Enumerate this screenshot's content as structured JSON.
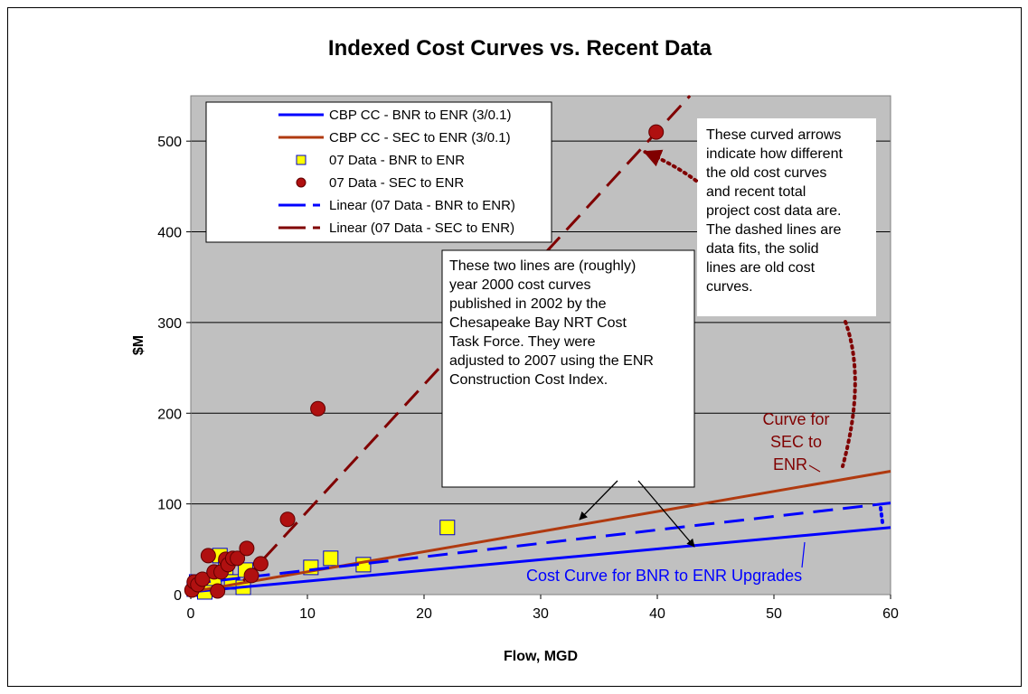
{
  "chart_data": {
    "type": "scatter",
    "title": "Indexed Cost Curves vs. Recent Data",
    "xlabel": "Flow, MGD",
    "ylabel": "$M",
    "xlim": [
      0,
      60
    ],
    "ylim": [
      0,
      550
    ],
    "x_ticks": [
      "0",
      "10",
      "20",
      "30",
      "40",
      "50",
      "60"
    ],
    "y_ticks": [
      "0",
      "100",
      "200",
      "300",
      "400",
      "500"
    ],
    "grid": "horizontal",
    "plot_background": "#c0c0c0",
    "legend_position": "top-left",
    "series": [
      {
        "name": "CBP CC - BNR to ENR (3/0.1)",
        "kind": "solid-line",
        "color": "#0000ff",
        "x": [
          0,
          60
        ],
        "y": [
          3,
          74
        ]
      },
      {
        "name": "CBP CC - SEC to ENR (3/0.1)",
        "kind": "solid-line",
        "color": "#b03a10",
        "x": [
          0,
          60
        ],
        "y": [
          3,
          136
        ]
      },
      {
        "name": "07 Data - BNR to ENR",
        "kind": "square-marker",
        "color": "#ffff00",
        "x": [
          0.3,
          0.5,
          1.0,
          1.2,
          2.0,
          2.5,
          3.0,
          3.5,
          4.5,
          4.7,
          10.3,
          12.0,
          14.8,
          22.0
        ],
        "y": [
          6,
          14,
          10,
          3,
          18,
          43,
          30,
          14,
          8,
          27,
          30,
          40,
          33,
          74
        ]
      },
      {
        "name": "07 Data - SEC to ENR",
        "kind": "circle-marker",
        "color": "#b01010",
        "x": [
          0.1,
          0.3,
          0.6,
          1.0,
          1.5,
          2.0,
          2.3,
          2.6,
          3.0,
          3.2,
          3.6,
          4.0,
          4.8,
          5.2,
          6.0,
          8.3,
          10.9,
          39.9
        ],
        "y": [
          5,
          14,
          11,
          17,
          43,
          25,
          4,
          25,
          39,
          33,
          40,
          40,
          51,
          21,
          34,
          83,
          205,
          510
        ]
      },
      {
        "name": "Linear (07 Data - BNR to ENR)",
        "kind": "dashed-line",
        "color": "#0000ff",
        "x": [
          0,
          60
        ],
        "y": [
          12,
          101
        ]
      },
      {
        "name": "Linear (07 Data - SEC to ENR)",
        "kind": "dashed-line",
        "color": "#800000",
        "x": [
          4.5,
          42.8
        ],
        "y": [
          15,
          550
        ]
      }
    ],
    "annotations": {
      "tf_box": [
        "These two lines are (roughly)",
        "year 2000 cost curves",
        "published in 2002 by the",
        "Chesapeake Bay NRT Cost",
        "Task Force.  They were",
        "adjusted to 2007 using the ENR",
        "Construction Cost Index."
      ],
      "arrow_box": [
        "These curved arrows",
        "indicate how different",
        "the old cost curves",
        "and recent total",
        "project cost data are.",
        "The dashed lines are",
        "data fits, the solid",
        "lines are old cost",
        "curves."
      ],
      "sec_label": [
        "Curve for",
        "SEC to",
        "ENR"
      ],
      "bnr_label": "Cost Curve for BNR to ENR Upgrades"
    }
  }
}
